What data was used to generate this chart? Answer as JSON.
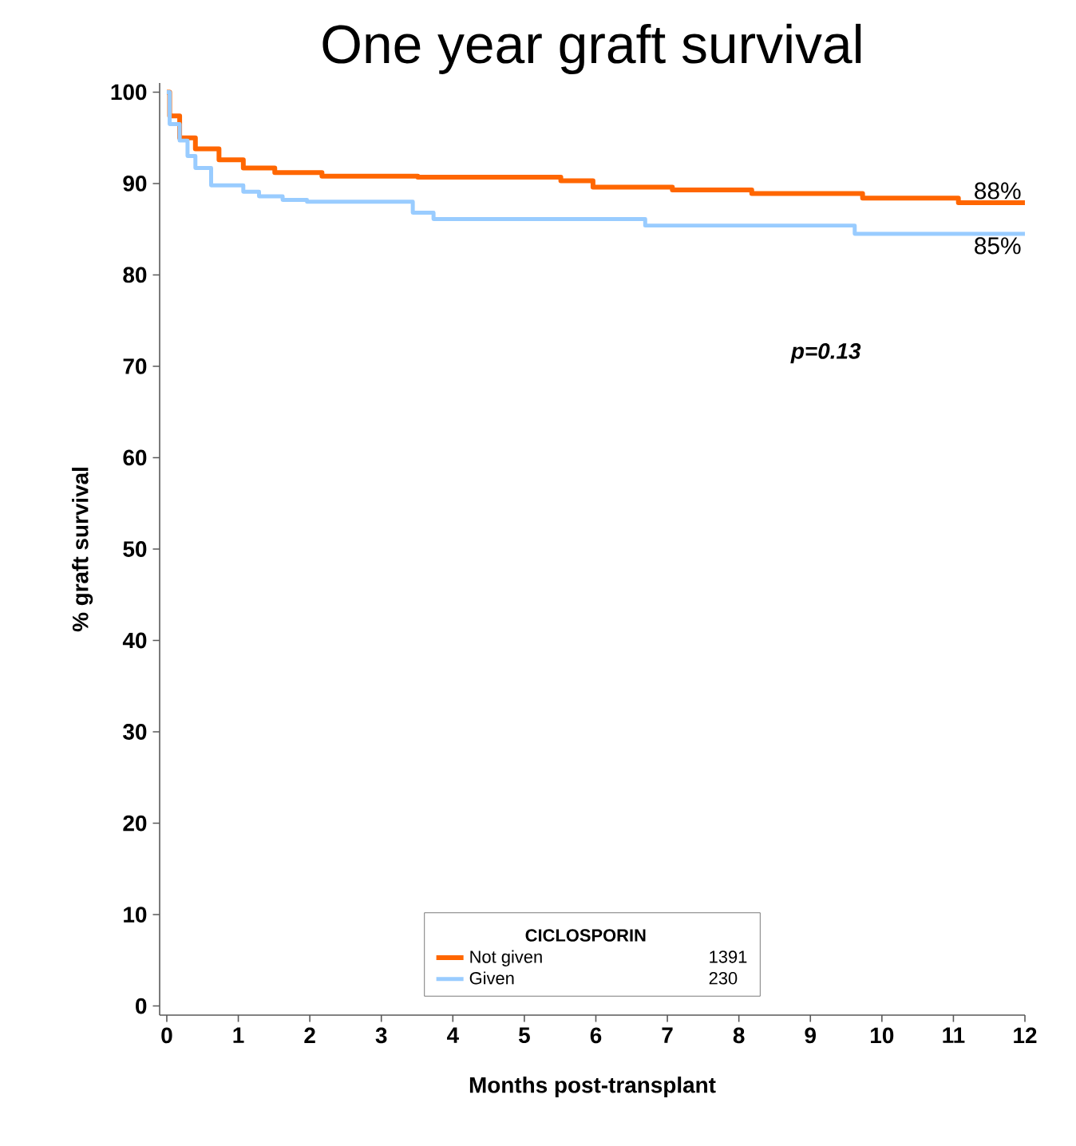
{
  "chart_data": {
    "type": "step",
    "title": "One year graft survival",
    "xlabel": "Months post-transplant",
    "ylabel": "% graft survival",
    "legend_title": "CICLOSPORIN",
    "series": [
      {
        "name": "Not given",
        "color": "#ff6600",
        "x": [
          0,
          0.04,
          0.18,
          0.4,
          0.73,
          1.07,
          1.51,
          2.17,
          3.51,
          5.51,
          5.96,
          7.07,
          8.18,
          9.73,
          11.07,
          12
        ],
        "values": [
          100,
          97.4,
          95,
          93.8,
          92.6,
          91.7,
          91.2,
          90.8,
          90.7,
          90.3,
          89.6,
          89.3,
          88.9,
          88.4,
          87.9,
          87.9
        ]
      },
      {
        "name": "Given",
        "color": "#99ccff",
        "x": [
          0,
          0.04,
          0.18,
          0.29,
          0.4,
          0.62,
          1.07,
          1.29,
          1.62,
          1.96,
          3.44,
          3.73,
          6.69,
          9.62,
          12
        ],
        "values": [
          100,
          96.5,
          94.7,
          93,
          91.7,
          89.8,
          89.1,
          88.6,
          88.2,
          88,
          86.8,
          86.1,
          85.4,
          84.5,
          84.5
        ]
      }
    ],
    "xlim": [
      -0.1,
      12
    ],
    "ylim": [
      -1,
      101
    ],
    "xticks": [
      0,
      1,
      2,
      3,
      4,
      5,
      6,
      7,
      8,
      9,
      10,
      11,
      12
    ],
    "yticks": [
      0,
      10,
      20,
      30,
      40,
      50,
      60,
      70,
      80,
      90,
      100
    ],
    "grid": false,
    "legend": "bottom",
    "marker": "none",
    "line_style": "solid",
    "annotations": [
      {
        "text": "88%",
        "x": 12,
        "y": 87.9
      },
      {
        "text": "85%",
        "x": 12,
        "y": 84.5
      },
      "p=0.13",
      "1391",
      "230"
    ]
  }
}
